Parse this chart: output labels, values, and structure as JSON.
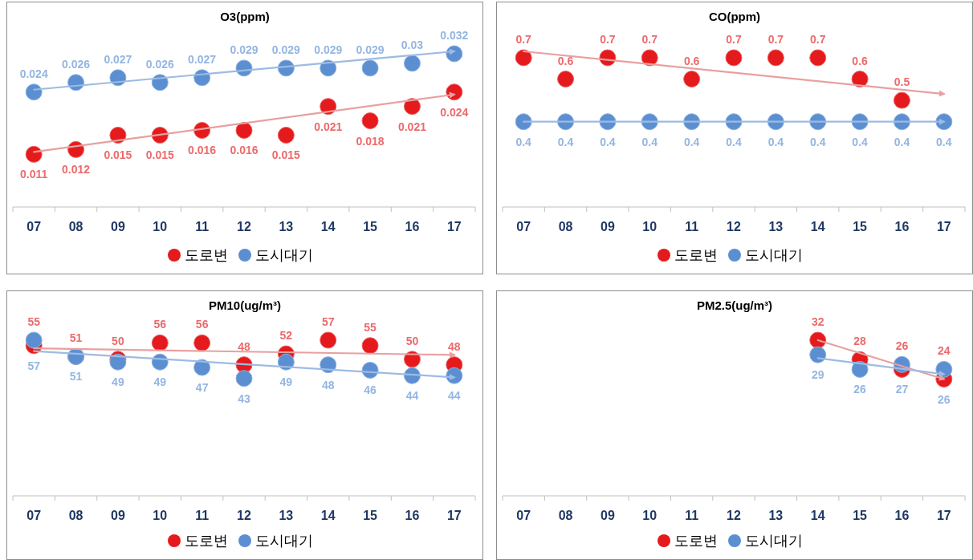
{
  "chart_data": [
    {
      "type": "scatter",
      "title": "O3(ppm)",
      "categories": [
        "07",
        "08",
        "09",
        "10",
        "11",
        "12",
        "13",
        "14",
        "15",
        "16",
        "17"
      ],
      "marker": "circle",
      "data_labels": true,
      "legend": "bottom",
      "series": [
        {
          "name": "도로변",
          "color": "#e41a1c",
          "values": [
            0.011,
            0.012,
            0.015,
            0.015,
            0.016,
            0.016,
            0.015,
            0.021,
            0.018,
            0.021,
            0.024
          ]
        },
        {
          "name": "도시대기",
          "color": "#5b8fd2",
          "values": [
            0.024,
            0.026,
            0.027,
            0.026,
            0.027,
            0.029,
            0.029,
            0.029,
            0.029,
            0.03,
            0.032
          ]
        },
        {
          "type": "line",
          "marker": "none",
          "color": "#e8a0a0",
          "values": [
            0.0115,
            null,
            null,
            null,
            null,
            null,
            null,
            null,
            null,
            null,
            0.0235
          ],
          "value_labels": [
            null,
            null,
            null,
            null,
            null,
            null,
            null,
            null,
            null,
            null,
            null
          ]
        },
        {
          "type": "line",
          "marker": "none",
          "color": "#9dbbe3",
          "values": [
            0.0245,
            null,
            null,
            null,
            null,
            null,
            null,
            null,
            null,
            null,
            0.0325
          ],
          "value_labels": [
            null,
            null,
            null,
            null,
            null,
            null,
            null,
            null,
            null,
            null,
            null
          ]
        }
      ]
    },
    {
      "type": "scatter",
      "title": "CO(ppm)",
      "categories": [
        "07",
        "08",
        "09",
        "10",
        "11",
        "12",
        "13",
        "14",
        "15",
        "16",
        "17"
      ],
      "marker": "circle",
      "data_labels": true,
      "legend": "bottom",
      "series": [
        {
          "name": "도로변",
          "color": "#e41a1c",
          "values": [
            0.7,
            0.6,
            0.7,
            0.7,
            0.6,
            0.7,
            0.7,
            0.7,
            0.6,
            0.5,
            null
          ]
        },
        {
          "name": "도시대기",
          "color": "#5b8fd2",
          "values": [
            0.4,
            0.4,
            0.4,
            0.4,
            0.4,
            0.4,
            0.4,
            0.4,
            0.4,
            0.4,
            0.4
          ]
        },
        {
          "type": "line",
          "marker": "none",
          "color": "#e8a0a0",
          "values": [
            0.73,
            null,
            null,
            null,
            null,
            null,
            null,
            null,
            null,
            null,
            0.53
          ],
          "value_labels": [
            null,
            null,
            null,
            null,
            null,
            null,
            null,
            null,
            null,
            null,
            null
          ]
        },
        {
          "type": "line",
          "marker": "none",
          "color": "#9dbbe3",
          "values": [
            0.4,
            null,
            null,
            null,
            null,
            null,
            null,
            null,
            null,
            null,
            0.4
          ],
          "value_labels": [
            null,
            null,
            null,
            null,
            null,
            null,
            null,
            null,
            null,
            null,
            null
          ]
        }
      ]
    },
    {
      "type": "scatter",
      "title": "PM10(ug/m³)",
      "categories": [
        "07",
        "08",
        "09",
        "10",
        "11",
        "12",
        "13",
        "14",
        "15",
        "16",
        "17"
      ],
      "marker": "circle",
      "data_labels": true,
      "legend": "bottom",
      "series": [
        {
          "name": "도로변",
          "color": "#e41a1c",
          "values": [
            55,
            51,
            50,
            56,
            56,
            48,
            52,
            57,
            55,
            50,
            48
          ]
        },
        {
          "name": "도시대기",
          "color": "#5b8fd2",
          "values": [
            57,
            51,
            49,
            49,
            47,
            43,
            49,
            48,
            46,
            44,
            44
          ]
        },
        {
          "type": "line",
          "marker": "none",
          "color": "#e8a0a0",
          "values": [
            54,
            null,
            null,
            null,
            null,
            null,
            null,
            null,
            null,
            null,
            51.6
          ],
          "value_labels": [
            null,
            null,
            null,
            null,
            null,
            null,
            null,
            null,
            null,
            null,
            null
          ]
        },
        {
          "type": "line",
          "marker": "none",
          "color": "#9dbbe3",
          "values": [
            53,
            null,
            null,
            null,
            null,
            null,
            null,
            null,
            null,
            null,
            43.4
          ],
          "value_labels": [
            null,
            null,
            null,
            null,
            null,
            null,
            null,
            null,
            null,
            null,
            null
          ]
        }
      ]
    },
    {
      "type": "scatter",
      "title": "PM2.5(ug/m³)",
      "categories": [
        "07",
        "08",
        "09",
        "10",
        "11",
        "12",
        "13",
        "14",
        "15",
        "16",
        "17"
      ],
      "marker": "circle",
      "data_labels": true,
      "legend": "bottom",
      "series": [
        {
          "name": "도로변",
          "color": "#e41a1c",
          "values": [
            null,
            null,
            null,
            null,
            null,
            null,
            null,
            32,
            28,
            26,
            24
          ]
        },
        {
          "name": "도시대기",
          "color": "#5b8fd2",
          "values": [
            null,
            null,
            null,
            null,
            null,
            null,
            null,
            29,
            26,
            27,
            26
          ]
        },
        {
          "type": "line",
          "marker": "none",
          "color": "#e8a0a0",
          "values": [
            null,
            null,
            null,
            null,
            null,
            null,
            null,
            32,
            null,
            null,
            24
          ],
          "value_labels": [
            null,
            null,
            null,
            null,
            null,
            null,
            null,
            null,
            null,
            null,
            null
          ]
        },
        {
          "type": "line",
          "marker": "none",
          "color": "#9dbbe3",
          "values": [
            null,
            null,
            null,
            null,
            null,
            null,
            null,
            28.3,
            null,
            null,
            25
          ],
          "value_labels": [
            null,
            null,
            null,
            null,
            null,
            null,
            null,
            null,
            null,
            null,
            null
          ]
        }
      ]
    }
  ]
}
